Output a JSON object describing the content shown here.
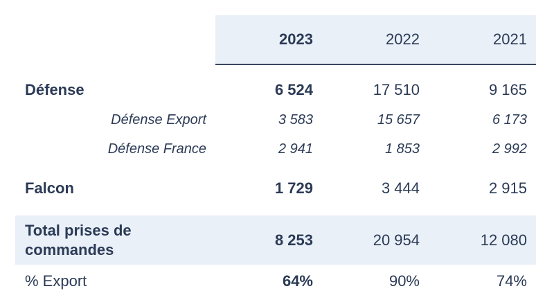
{
  "columns": [
    "2023",
    "2022",
    "2021"
  ],
  "rows": [
    {
      "label": "Défense",
      "values": [
        "6 524",
        "17 510",
        "9 165"
      ]
    },
    {
      "label": "Défense Export",
      "values": [
        "3 583",
        "15 657",
        "6 173"
      ]
    },
    {
      "label": "Défense France",
      "values": [
        "2 941",
        "1 853",
        "2 992"
      ]
    },
    {
      "label": "Falcon",
      "values": [
        "1 729",
        "3 444",
        "2 915"
      ]
    },
    {
      "label_line1": "Total prises de",
      "label_line2": "commandes",
      "values": [
        "8 253",
        "20 954",
        "12 080"
      ]
    },
    {
      "label": "% Export",
      "values": [
        "64%",
        "90%",
        "74%"
      ]
    }
  ],
  "colors": {
    "text": "#2b3a55",
    "header_bg": "#e9f0f8",
    "rule": "#3a4660"
  }
}
